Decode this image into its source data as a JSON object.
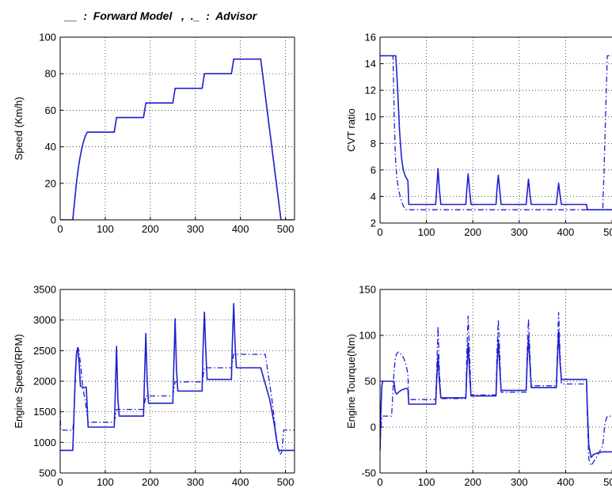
{
  "legend": "__  :  Forward Model   ,  ._  :  Advisor",
  "style": {
    "line_color": "#1f1fd0",
    "grid": "dotted"
  },
  "chart_data": [
    {
      "type": "line",
      "ylabel": "Speed (Km/h)",
      "xlim": [
        0,
        520
      ],
      "ylim": [
        0,
        100
      ],
      "xticks": [
        0,
        100,
        200,
        300,
        400,
        500
      ],
      "yticks": [
        0,
        20,
        40,
        60,
        80,
        100
      ],
      "grid": true,
      "series": [
        {
          "style": "solid",
          "x": [
            0,
            28,
            32,
            36,
            40,
            44,
            48,
            52,
            56,
            60,
            120,
            125,
            185,
            190,
            250,
            255,
            315,
            320,
            380,
            385,
            445,
            490,
            495,
            520
          ],
          "y": [
            0,
            0,
            10,
            20,
            28,
            34,
            39,
            43,
            46,
            48,
            48,
            56,
            56,
            64,
            64,
            72,
            72,
            80,
            80,
            88,
            88,
            0,
            0,
            0
          ]
        },
        {
          "style": "dashdot",
          "x": [
            0,
            28,
            32,
            36,
            40,
            44,
            48,
            52,
            56,
            60,
            120,
            125,
            185,
            190,
            250,
            255,
            315,
            320,
            380,
            385,
            445,
            490,
            495,
            520
          ],
          "y": [
            0,
            0,
            10,
            20,
            28,
            34,
            39,
            43,
            46,
            48,
            48,
            56,
            56,
            64,
            64,
            72,
            72,
            80,
            80,
            88,
            88,
            0,
            0,
            0
          ]
        }
      ]
    },
    {
      "type": "line",
      "ylabel": "CVT ratio",
      "xlim": [
        0,
        500
      ],
      "ylim": [
        2,
        16
      ],
      "xticks": [
        0,
        100,
        200,
        300,
        400,
        500
      ],
      "yticks": [
        2,
        4,
        6,
        8,
        10,
        12,
        14,
        16
      ],
      "grid": true,
      "series": [
        {
          "style": "solid",
          "x": [
            0,
            34,
            38,
            42,
            46,
            50,
            55,
            60,
            62,
            120,
            122,
            125,
            128,
            131,
            185,
            187,
            190,
            193,
            196,
            250,
            252,
            255,
            258,
            261,
            315,
            317,
            320,
            323,
            326,
            380,
            382,
            385,
            388,
            391,
            445,
            447,
            520
          ],
          "y": [
            14.6,
            14.6,
            12,
            9,
            7,
            6,
            5.5,
            5.2,
            3.4,
            3.4,
            4.5,
            6.1,
            4.5,
            3.4,
            3.4,
            4.5,
            5.7,
            4.5,
            3.4,
            3.4,
            4.5,
            5.6,
            4.5,
            3.4,
            3.4,
            4.2,
            5.3,
            4.2,
            3.4,
            3.4,
            4.1,
            5.0,
            4.1,
            3.4,
            3.4,
            3.0,
            3.0
          ]
        },
        {
          "style": "dashdot",
          "x": [
            0,
            28,
            30,
            32,
            34,
            36,
            40,
            45,
            50,
            55,
            60,
            480,
            483,
            486,
            490,
            495,
            520
          ],
          "y": [
            14.6,
            14.6,
            11,
            8,
            6.5,
            5.5,
            4.5,
            3.8,
            3.3,
            3.0,
            3.0,
            3.0,
            6,
            10,
            14.6,
            14.6,
            14.6
          ]
        }
      ]
    },
    {
      "type": "line",
      "ylabel": "Engine Speed(RPM)",
      "xlim": [
        0,
        520
      ],
      "ylim": [
        500,
        3500
      ],
      "xticks": [
        0,
        100,
        200,
        300,
        400,
        500
      ],
      "yticks": [
        500,
        1000,
        1500,
        2000,
        2500,
        3000,
        3500
      ],
      "grid": true,
      "series": [
        {
          "style": "solid",
          "x": [
            0,
            28,
            30,
            33,
            36,
            39,
            42,
            45,
            50,
            55,
            58,
            62,
            120,
            122,
            125,
            128,
            131,
            185,
            187,
            190,
            193,
            196,
            250,
            252,
            255,
            258,
            261,
            315,
            317,
            320,
            323,
            326,
            380,
            382,
            385,
            388,
            391,
            445,
            465,
            475,
            480,
            485,
            490,
            520
          ],
          "y": [
            870,
            870,
            1300,
            2000,
            2450,
            2550,
            2300,
            1920,
            1900,
            1900,
            1900,
            1250,
            1250,
            1700,
            2570,
            1700,
            1430,
            1430,
            2000,
            2780,
            2000,
            1640,
            1640,
            2200,
            3020,
            2200,
            1840,
            1840,
            2500,
            3130,
            2500,
            2030,
            2030,
            2600,
            3270,
            2600,
            2220,
            2220,
            1700,
            1300,
            1050,
            870,
            870,
            870
          ]
        },
        {
          "style": "dashdot",
          "x": [
            0,
            1,
            5,
            28,
            30,
            33,
            36,
            40,
            45,
            50,
            55,
            60,
            62,
            120,
            125,
            130,
            185,
            190,
            195,
            250,
            255,
            260,
            315,
            320,
            325,
            380,
            385,
            390,
            455,
            460,
            470,
            478,
            483,
            488,
            492,
            496,
            520
          ],
          "y": [
            1550,
            1200,
            1200,
            1200,
            1350,
            1900,
            2400,
            2550,
            2300,
            1900,
            1700,
            1450,
            1330,
            1330,
            1540,
            1540,
            1540,
            1760,
            1760,
            1760,
            1990,
            1990,
            1990,
            2220,
            2220,
            2220,
            2440,
            2440,
            2440,
            2200,
            1700,
            1200,
            900,
            800,
            850,
            1200,
            1200
          ]
        }
      ]
    },
    {
      "type": "line",
      "ylabel": "Engine Tourque(Nm)",
      "xlim": [
        0,
        500
      ],
      "ylim": [
        -50,
        150
      ],
      "xticks": [
        0,
        100,
        200,
        300,
        400,
        500
      ],
      "yticks": [
        -50,
        0,
        50,
        100,
        150
      ],
      "grid": true,
      "series": [
        {
          "style": "solid",
          "x": [
            0,
            2,
            4,
            6,
            30,
            33,
            36,
            40,
            45,
            50,
            55,
            60,
            62,
            120,
            122,
            125,
            128,
            131,
            185,
            187,
            190,
            193,
            196,
            250,
            252,
            255,
            258,
            261,
            315,
            317,
            320,
            323,
            326,
            380,
            382,
            385,
            388,
            391,
            445,
            447,
            450,
            455,
            460,
            470,
            480,
            490,
            520
          ],
          "y": [
            -25,
            20,
            45,
            50,
            50,
            38,
            36,
            38,
            40,
            41,
            42,
            42,
            25,
            25,
            50,
            78,
            50,
            32,
            32,
            60,
            92,
            60,
            34,
            34,
            65,
            95,
            65,
            40,
            40,
            70,
            98,
            70,
            43,
            43,
            70,
            105,
            70,
            52,
            52,
            20,
            -20,
            -33,
            -30,
            -28,
            -27,
            -27,
            -27
          ]
        },
        {
          "style": "dashdot",
          "x": [
            0,
            1,
            3,
            5,
            8,
            12,
            16,
            20,
            25,
            28,
            30,
            33,
            36,
            40,
            44,
            48,
            52,
            56,
            60,
            62,
            120,
            122,
            125,
            128,
            131,
            185,
            187,
            190,
            193,
            196,
            250,
            252,
            255,
            258,
            261,
            315,
            317,
            320,
            323,
            326,
            380,
            382,
            385,
            388,
            391,
            445,
            447,
            450,
            455,
            460,
            470,
            480,
            485,
            490,
            520
          ],
          "y": [
            -25,
            -10,
            8,
            12,
            12,
            12,
            12,
            12,
            12,
            40,
            60,
            75,
            80,
            82,
            80,
            78,
            74,
            68,
            58,
            30,
            30,
            60,
            110,
            60,
            31,
            31,
            80,
            121,
            80,
            35,
            35,
            80,
            117,
            80,
            38,
            38,
            80,
            118,
            80,
            45,
            45,
            80,
            125,
            80,
            47,
            47,
            10,
            -35,
            -42,
            -38,
            -30,
            -20,
            5,
            12,
            12
          ]
        }
      ]
    }
  ]
}
